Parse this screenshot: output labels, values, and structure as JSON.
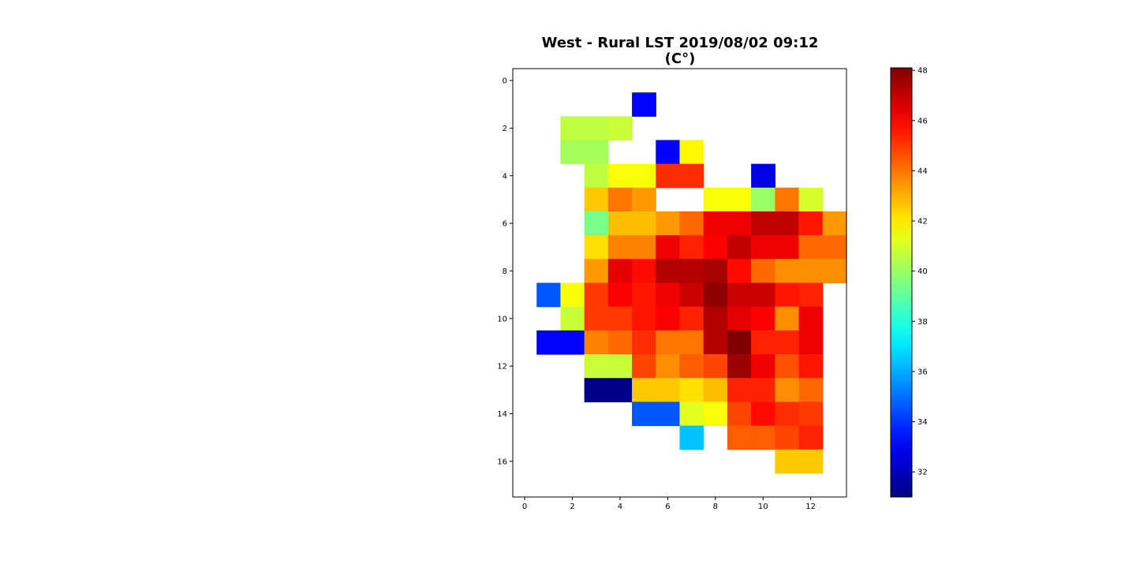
{
  "chart_data": {
    "type": "heatmap",
    "title_line1": "West - Rural LST 2019/08/02 09:12",
    "title_line2": "(C°)",
    "xlabel": "",
    "ylabel": "",
    "x_ticks": [
      0,
      2,
      4,
      6,
      8,
      10,
      12
    ],
    "y_ticks": [
      0,
      2,
      4,
      6,
      8,
      10,
      12,
      14,
      16
    ],
    "xlim": [
      -0.5,
      13.5
    ],
    "ylim": [
      17.5,
      -0.5
    ],
    "colormap": "jet",
    "colorbar": {
      "vmin": 31.0,
      "vmax": 48.1,
      "ticks": [
        32,
        34,
        36,
        38,
        40,
        42,
        44,
        46,
        48
      ]
    },
    "grid": false,
    "values": [
      [
        null,
        null,
        null,
        null,
        null,
        null,
        null,
        null,
        null,
        null,
        null,
        null,
        null,
        null
      ],
      [
        null,
        null,
        null,
        null,
        null,
        33.2,
        null,
        null,
        null,
        null,
        null,
        null,
        null,
        null
      ],
      [
        null,
        null,
        40.6,
        40.6,
        40.8,
        null,
        null,
        null,
        null,
        null,
        null,
        null,
        null,
        null
      ],
      [
        null,
        null,
        40.2,
        40.2,
        null,
        null,
        33.2,
        41.8,
        null,
        null,
        null,
        null,
        null,
        null
      ],
      [
        null,
        null,
        null,
        40.6,
        41.6,
        41.6,
        45.2,
        45.2,
        null,
        null,
        32.7,
        null,
        null,
        null
      ],
      [
        null,
        null,
        null,
        42.6,
        44.0,
        43.4,
        null,
        null,
        41.6,
        41.6,
        40.0,
        44.0,
        41.0,
        null
      ],
      [
        null,
        null,
        null,
        39.4,
        42.8,
        42.8,
        43.4,
        44.2,
        46.2,
        46.2,
        47.0,
        47.0,
        45.6,
        43.4
      ],
      [
        null,
        null,
        null,
        42.2,
        43.8,
        43.8,
        46.2,
        45.4,
        46.0,
        47.0,
        46.2,
        46.2,
        44.2,
        44.2
      ],
      [
        null,
        null,
        null,
        43.4,
        46.4,
        45.8,
        47.2,
        47.2,
        47.4,
        45.8,
        44.2,
        43.6,
        43.6,
        43.6
      ],
      [
        null,
        34.6,
        41.6,
        45.0,
        46.0,
        45.6,
        46.2,
        46.8,
        47.8,
        46.8,
        46.8,
        45.6,
        45.4,
        null
      ],
      [
        null,
        null,
        40.8,
        45.0,
        45.0,
        45.6,
        46.0,
        45.4,
        47.2,
        46.4,
        46.0,
        43.6,
        46.2,
        null
      ],
      [
        null,
        33.2,
        33.2,
        43.8,
        44.2,
        45.2,
        44.0,
        44.0,
        47.2,
        48.1,
        45.4,
        45.4,
        46.2,
        null
      ],
      [
        null,
        null,
        null,
        40.8,
        40.8,
        44.8,
        43.6,
        44.4,
        44.8,
        47.6,
        46.2,
        44.6,
        45.6,
        null
      ],
      [
        null,
        null,
        null,
        31.2,
        31.2,
        42.6,
        42.6,
        42.2,
        42.8,
        45.4,
        45.4,
        43.6,
        44.2,
        null
      ],
      [
        null,
        null,
        null,
        null,
        null,
        34.6,
        34.6,
        41.2,
        41.6,
        44.8,
        45.8,
        45.2,
        45.0,
        null
      ],
      [
        null,
        null,
        null,
        null,
        null,
        null,
        null,
        36.4,
        null,
        44.4,
        44.4,
        44.8,
        45.4,
        null
      ],
      [
        null,
        null,
        null,
        null,
        null,
        null,
        null,
        null,
        null,
        null,
        null,
        42.6,
        42.6,
        null
      ],
      [
        null,
        null,
        null,
        null,
        null,
        null,
        null,
        null,
        null,
        null,
        null,
        null,
        null,
        null
      ]
    ]
  }
}
